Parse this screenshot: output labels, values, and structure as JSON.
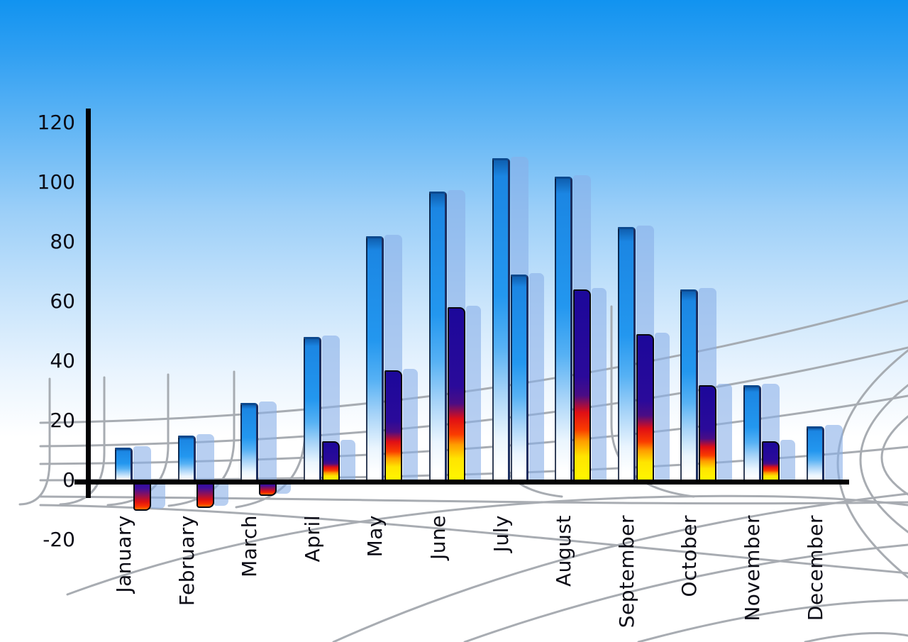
{
  "chart_data": {
    "type": "bar",
    "title": "",
    "xlabel": "",
    "ylabel": "",
    "categories": [
      "January",
      "February",
      "March",
      "April",
      "May",
      "June",
      "July",
      "August",
      "September",
      "October",
      "November",
      "December"
    ],
    "series": [
      {
        "name": "primary-blue-bars",
        "values": [
          11,
          15,
          26,
          48,
          82,
          97,
          108,
          102,
          85,
          64,
          32,
          18
        ]
      },
      {
        "name": "secondary-accent-bars",
        "values": [
          -10,
          -9,
          -5,
          13,
          37,
          58,
          69,
          64,
          49,
          32,
          13,
          0
        ]
      }
    ],
    "secondary_bar_styles": [
      "fire",
      "fire",
      "fire",
      "fire",
      "fire",
      "fire",
      "blue",
      "fire",
      "fire",
      "fire",
      "fire",
      "none"
    ],
    "y_ticks": [
      {
        "label": "120",
        "value": 120
      },
      {
        "label": "100",
        "value": 100
      },
      {
        "label": "80",
        "value": 80
      },
      {
        "label": "60",
        "value": 60
      },
      {
        "label": "40",
        "value": 40
      },
      {
        "label": "20",
        "value": 20
      },
      {
        "label": "0",
        "value": 0
      },
      {
        "label": "-20",
        "value": -20
      }
    ],
    "ylim": [
      -20,
      120
    ],
    "legend": "none",
    "grid": "decorative curved perspective mesh, grey, lower half",
    "colors": {
      "sky_top": "#1193f0",
      "sky_mid": "#9ccff8",
      "sky_bottom": "#ffffff",
      "bar_blue_top": "#1b86e3",
      "bar_blue_bottom": "#ffffff",
      "bar_echo": "#88afe8",
      "fire_navy": "#2a0a9a",
      "fire_red": "#e00f15",
      "fire_yellow": "#fff800",
      "axis": "#020204",
      "grid_line": "#a1a6ac",
      "text": "#0c0c16"
    }
  }
}
